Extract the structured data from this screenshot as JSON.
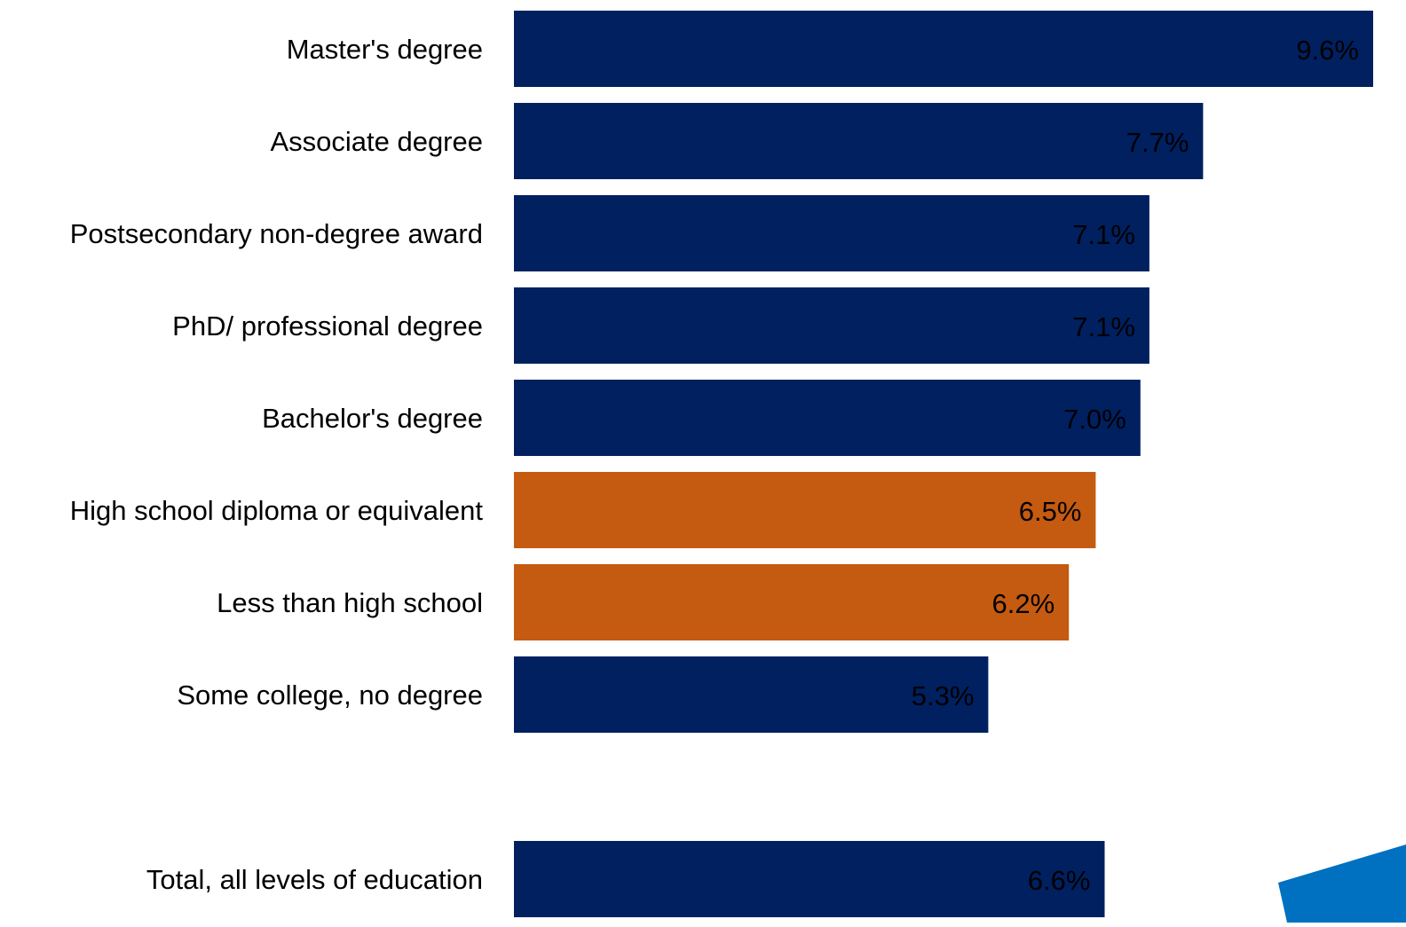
{
  "chart_data": {
    "type": "bar",
    "orientation": "horizontal",
    "title": "",
    "xlabel": "",
    "ylabel": "",
    "grid": false,
    "legend": "none",
    "categories": [
      "Master's degree",
      "Associate degree",
      "Postsecondary non-degree award",
      "PhD/ professional degree",
      "Bachelor's degree",
      "High school diploma or equivalent",
      "Less than high school",
      "Some college, no degree",
      "Total, all levels of education"
    ],
    "values": [
      9.6,
      7.7,
      7.1,
      7.1,
      7.0,
      6.5,
      6.2,
      5.3,
      6.6
    ],
    "data_labels": [
      "9.6%",
      "7.7%",
      "7.1%",
      "7.1%",
      "7.0%",
      "6.5%",
      "6.2%",
      "5.3%",
      "6.6%"
    ],
    "bar_colors": [
      "#002060",
      "#002060",
      "#002060",
      "#002060",
      "#002060",
      "#C55A11",
      "#C55A11",
      "#002060",
      "#002060"
    ],
    "xlim": [
      0,
      9.6
    ]
  },
  "colors": {
    "primary_bar": "#002060",
    "highlight_bar": "#C55A11",
    "corner_accent": "#0070C0",
    "label_text": "#000000"
  }
}
